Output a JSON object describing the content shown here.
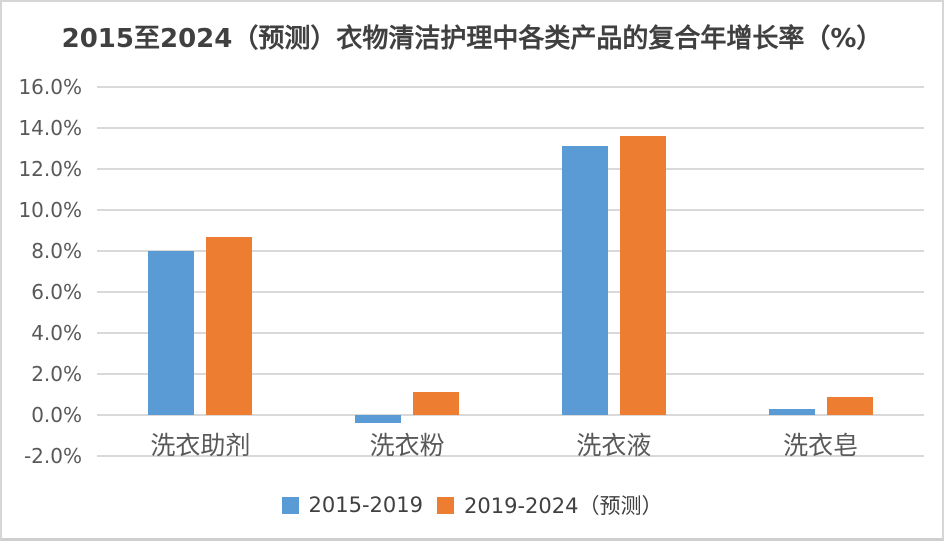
{
  "chart": {
    "title": "2015至2024（预测）衣物清洁护理中各类产品的复合年增长率（%）"
  },
  "legend": {
    "series1_label": "2015-2019",
    "series2_label": "2019-2024（预测）"
  },
  "colors": {
    "series1": "#5B9BD5",
    "series2": "#ED7D31",
    "gridline": "#d9d9d9",
    "tick_text": "#595959",
    "title_text": "#404040"
  },
  "chart_data": {
    "type": "bar",
    "title": "2015至2024（预测）衣物清洁护理中各类产品的复合年增长率（%）",
    "categories": [
      "洗衣助剂",
      "洗衣粉",
      "洗衣液",
      "洗衣皂"
    ],
    "series": [
      {
        "name": "2015-2019",
        "color": "#5B9BD5",
        "values": [
          8.0,
          -0.4,
          13.1,
          0.3
        ]
      },
      {
        "name": "2019-2024（预测）",
        "color": "#ED7D31",
        "values": [
          8.7,
          1.1,
          13.6,
          0.9
        ]
      }
    ],
    "xlabel": "",
    "ylabel": "",
    "ylim": [
      -2.0,
      16.0
    ],
    "y_tick_step": 2.0,
    "y_tick_labels": [
      "16.0%",
      "14.0%",
      "12.0%",
      "10.0%",
      "8.0%",
      "6.0%",
      "4.0%",
      "2.0%",
      "0.0%",
      "-2.0%"
    ],
    "grid": true,
    "legend_position": "bottom"
  }
}
